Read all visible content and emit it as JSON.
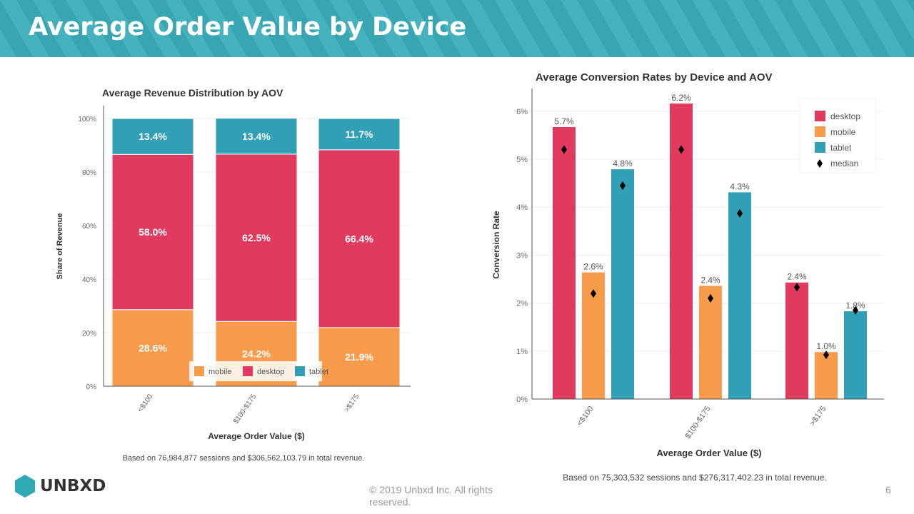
{
  "page": {
    "title": "Average Order Value by Device",
    "copyright": "© 2019 Unbxd Inc. All rights reserved.",
    "page_number": "6",
    "logo_text": "UNBXD"
  },
  "colors": {
    "desktop": "#e03a5f",
    "mobile": "#f89c4c",
    "tablet": "#31a0b6",
    "median": "#000000",
    "header": "#39adb9"
  },
  "chart_data": [
    {
      "type": "bar",
      "stacked": true,
      "title": "Average Revenue Distribution by AOV",
      "xlabel": "Average Order Value ($)",
      "ylabel": "Share of Revenue",
      "categories": [
        "<$100",
        "$100-$175",
        ">$175"
      ],
      "ylim": [
        0,
        100
      ],
      "yticks": [
        "0%",
        "20%",
        "40%",
        "60%",
        "80%",
        "100%"
      ],
      "series": [
        {
          "name": "mobile",
          "values": [
            28.6,
            24.2,
            21.9
          ],
          "labels": [
            "28.6%",
            "24.2%",
            "21.9%"
          ]
        },
        {
          "name": "desktop",
          "values": [
            58.0,
            62.5,
            66.4
          ],
          "labels": [
            "58.0%",
            "62.5%",
            "66.4%"
          ]
        },
        {
          "name": "tablet",
          "values": [
            13.4,
            13.4,
            11.7
          ],
          "labels": [
            "13.4%",
            "13.4%",
            "11.7%"
          ]
        }
      ],
      "legend": "bottom-center",
      "grid": true,
      "note": "Based on 76,984,877 sessions and $306,562,103.79 in total revenue."
    },
    {
      "type": "bar",
      "title": "Average Conversion Rates by Device and AOV",
      "xlabel": "Average Order Value ($)",
      "ylabel": "Conversion Rate",
      "categories": [
        "<$100",
        "$100-$175",
        ">$175"
      ],
      "ylim": [
        0,
        6.4
      ],
      "yticks": [
        "0%",
        "1%",
        "2%",
        "3%",
        "4%",
        "5%",
        "6%"
      ],
      "series": [
        {
          "name": "desktop",
          "values": [
            5.67,
            6.16,
            2.43
          ],
          "labels": [
            "5.7%",
            "6.2%",
            "2.4%"
          ]
        },
        {
          "name": "mobile",
          "values": [
            2.64,
            2.36,
            0.98
          ],
          "labels": [
            "2.6%",
            "2.4%",
            "1.0%"
          ]
        },
        {
          "name": "tablet",
          "values": [
            4.79,
            4.31,
            1.83
          ],
          "labels": [
            "4.8%",
            "4.3%",
            "1.8%"
          ]
        }
      ],
      "median": {
        "name": "median",
        "desktop": [
          5.2,
          5.2,
          2.33
        ],
        "mobile": [
          2.2,
          2.1,
          0.92
        ],
        "tablet": [
          4.45,
          3.87,
          1.85
        ]
      },
      "legend": "top-right",
      "grid": true,
      "note": "Based on 75,303,532 sessions and $276,317,402.23 in total revenue."
    }
  ]
}
